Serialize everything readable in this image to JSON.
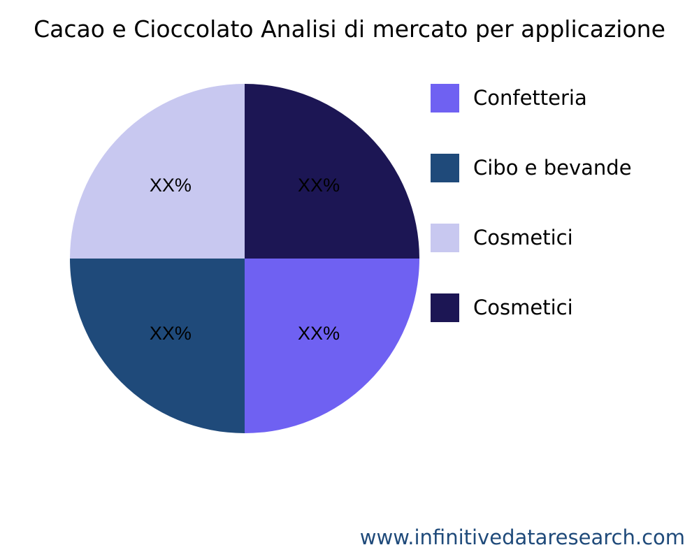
{
  "chart_data": {
    "type": "pie",
    "title": "Cacao e Cioccolato Analisi di mercato per applicazione",
    "slices": [
      {
        "name": "Cosmetici",
        "value": 25,
        "label": "XX%",
        "color": "#1c1654"
      },
      {
        "name": "Confetteria",
        "value": 25,
        "label": "XX%",
        "color": "#6f61f2"
      },
      {
        "name": "Cibo e bevande",
        "value": 25,
        "label": "XX%",
        "color": "#1f4a7a"
      },
      {
        "name": "Cosmetici",
        "value": 25,
        "label": "XX%",
        "color": "#c8c8f0"
      }
    ],
    "legend": [
      {
        "label": "Confetteria",
        "color": "#6f61f2"
      },
      {
        "label": "Cibo e bevande",
        "color": "#1f4a7a"
      },
      {
        "label": "Cosmetici",
        "color": "#c8c8f0"
      },
      {
        "label": "Cosmetici",
        "color": "#1c1654"
      }
    ],
    "legend_position": "right"
  },
  "watermark": "www.infinitivedataresearch.com"
}
